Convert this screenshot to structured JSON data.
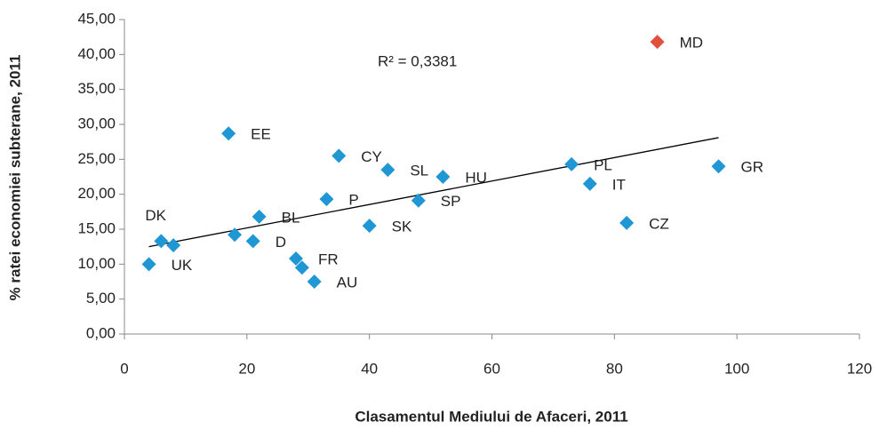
{
  "chart_data": {
    "type": "scatter",
    "x_label": "Clasamentul Mediului de Afaceri, 2011",
    "y_label": "% ratei economiei subterane, 2011",
    "annotation": "R² = 0,3381",
    "x": [
      17,
      35,
      43,
      52,
      73,
      97,
      76,
      82,
      33,
      48,
      40,
      22,
      6,
      8,
      18,
      21,
      28,
      29,
      31,
      4,
      87
    ],
    "values": [
      28.7,
      25.5,
      23.5,
      22.5,
      24.3,
      24,
      21.5,
      15.9,
      19.3,
      19.1,
      15.5,
      16.8,
      13.3,
      12.7,
      14.2,
      13.3,
      10.8,
      9.5,
      7.5,
      10,
      41.8
    ],
    "labels": [
      "EE",
      "CY",
      "SL",
      "HU",
      "PL",
      "GR",
      "IT",
      "CZ",
      "P",
      "SP",
      "SK",
      "BL",
      "DK",
      null,
      null,
      "D",
      "FR",
      null,
      "AU",
      "UK",
      "MD"
    ],
    "colors": [
      "#1f97d4",
      "#1f97d4",
      "#1f97d4",
      "#1f97d4",
      "#1f97d4",
      "#1f97d4",
      "#1f97d4",
      "#1f97d4",
      "#1f97d4",
      "#1f97d4",
      "#1f97d4",
      "#1f97d4",
      "#1f97d4",
      "#1f97d4",
      "#1f97d4",
      "#1f97d4",
      "#1f97d4",
      "#1f97d4",
      "#1f97d4",
      "#1f97d4",
      "#e0503c"
    ],
    "trendline": {
      "x": [
        4,
        97
      ],
      "y": [
        12.5,
        28.1
      ],
      "color": "#000000"
    },
    "xlim": [
      0,
      120
    ],
    "xticks": [
      0,
      20,
      40,
      60,
      80,
      100,
      120
    ],
    "ylim": [
      0,
      45
    ],
    "yticks": [
      {
        "value": 0,
        "label": "0,00"
      },
      {
        "value": 5,
        "label": "5,00"
      },
      {
        "value": 10,
        "label": "10,00"
      },
      {
        "value": 15,
        "label": "15,00"
      },
      {
        "value": 20,
        "label": "20,00"
      },
      {
        "value": 25,
        "label": "25,00"
      },
      {
        "value": 30,
        "label": "30,00"
      },
      {
        "value": 35,
        "label": "35,00"
      },
      {
        "value": 40,
        "label": "40,00"
      },
      {
        "value": 45,
        "label": "45,00"
      }
    ],
    "grid": false
  }
}
